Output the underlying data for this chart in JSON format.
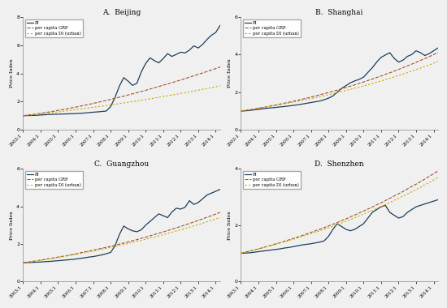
{
  "titles": [
    "A.  Beijing",
    "B.  Shanghai",
    "C.  Guangzhou",
    "D.  Shenzhen"
  ],
  "ylabel": "Price Index",
  "x_ticks": [
    "2003:1",
    "2004:1",
    "2005:1",
    "2006:1",
    "2007:1",
    "2008:1",
    "2009:1",
    "2010:1",
    "2011:1",
    "2012:1",
    "2013:1",
    "2014:1"
  ],
  "legend_labels": [
    "PI",
    "per capita GRP",
    "per capita DI (urban)"
  ],
  "pi_color": "#1c3f5e",
  "grp_color": "#a0522d",
  "di_color": "#c8a800",
  "fig_facecolor": "#f0f0f0",
  "ax_facecolor": "#f0f0f0",
  "n_points": 46,
  "pi_beijing": [
    1.0,
    1.01,
    1.02,
    1.03,
    1.05,
    1.07,
    1.09,
    1.1,
    1.11,
    1.12,
    1.13,
    1.14,
    1.15,
    1.17,
    1.19,
    1.22,
    1.25,
    1.27,
    1.3,
    1.33,
    1.65,
    2.3,
    3.1,
    3.7,
    3.45,
    3.15,
    3.3,
    4.1,
    4.7,
    5.1,
    4.9,
    4.75,
    5.05,
    5.4,
    5.2,
    5.35,
    5.5,
    5.45,
    5.65,
    5.95,
    5.8,
    6.05,
    6.4,
    6.7,
    6.9,
    7.4
  ],
  "grp_beijing": [
    1.0,
    1.04,
    1.08,
    1.12,
    1.17,
    1.22,
    1.27,
    1.32,
    1.38,
    1.43,
    1.49,
    1.55,
    1.61,
    1.67,
    1.74,
    1.8,
    1.87,
    1.94,
    2.01,
    2.08,
    2.16,
    2.24,
    2.31,
    2.39,
    2.47,
    2.55,
    2.63,
    2.72,
    2.8,
    2.89,
    2.98,
    3.07,
    3.16,
    3.25,
    3.34,
    3.44,
    3.53,
    3.63,
    3.73,
    3.83,
    3.93,
    4.03,
    4.13,
    4.24,
    4.34,
    4.45
  ],
  "di_beijing": [
    1.0,
    1.03,
    1.06,
    1.09,
    1.13,
    1.16,
    1.2,
    1.24,
    1.27,
    1.31,
    1.35,
    1.39,
    1.43,
    1.47,
    1.51,
    1.55,
    1.59,
    1.64,
    1.68,
    1.72,
    1.77,
    1.81,
    1.86,
    1.91,
    1.95,
    2.0,
    2.05,
    2.1,
    2.15,
    2.2,
    2.25,
    2.31,
    2.36,
    2.41,
    2.47,
    2.52,
    2.58,
    2.63,
    2.69,
    2.75,
    2.81,
    2.87,
    2.93,
    2.99,
    3.05,
    3.12
  ],
  "pi_shanghai": [
    1.0,
    1.01,
    1.03,
    1.06,
    1.09,
    1.12,
    1.15,
    1.17,
    1.19,
    1.22,
    1.24,
    1.27,
    1.3,
    1.33,
    1.37,
    1.41,
    1.45,
    1.49,
    1.53,
    1.6,
    1.68,
    1.8,
    2.0,
    2.2,
    2.35,
    2.5,
    2.6,
    2.68,
    2.8,
    3.05,
    3.3,
    3.6,
    3.85,
    3.98,
    4.1,
    3.8,
    3.6,
    3.7,
    3.9,
    4.0,
    4.2,
    4.1,
    3.95,
    4.05,
    4.2,
    4.35
  ],
  "grp_shanghai": [
    1.0,
    1.03,
    1.07,
    1.11,
    1.15,
    1.19,
    1.23,
    1.28,
    1.32,
    1.37,
    1.42,
    1.47,
    1.52,
    1.57,
    1.63,
    1.68,
    1.74,
    1.8,
    1.86,
    1.92,
    1.98,
    2.05,
    2.11,
    2.18,
    2.25,
    2.32,
    2.39,
    2.47,
    2.54,
    2.62,
    2.7,
    2.78,
    2.86,
    2.95,
    3.03,
    3.12,
    3.21,
    3.3,
    3.4,
    3.49,
    3.59,
    3.69,
    3.79,
    3.89,
    4.0,
    4.1
  ],
  "di_shanghai": [
    1.0,
    1.04,
    1.07,
    1.11,
    1.14,
    1.18,
    1.22,
    1.26,
    1.3,
    1.34,
    1.38,
    1.43,
    1.47,
    1.52,
    1.56,
    1.61,
    1.66,
    1.71,
    1.76,
    1.81,
    1.86,
    1.92,
    1.97,
    2.03,
    2.09,
    2.15,
    2.21,
    2.27,
    2.33,
    2.4,
    2.46,
    2.53,
    2.6,
    2.67,
    2.74,
    2.81,
    2.89,
    2.96,
    3.04,
    3.12,
    3.2,
    3.28,
    3.37,
    3.45,
    3.54,
    3.63
  ],
  "pi_guangzhou": [
    1.0,
    1.01,
    1.02,
    1.03,
    1.04,
    1.06,
    1.07,
    1.09,
    1.11,
    1.13,
    1.15,
    1.17,
    1.2,
    1.23,
    1.26,
    1.3,
    1.33,
    1.37,
    1.42,
    1.48,
    1.55,
    1.9,
    2.5,
    2.95,
    2.8,
    2.7,
    2.65,
    2.75,
    3.0,
    3.2,
    3.4,
    3.6,
    3.5,
    3.4,
    3.7,
    3.9,
    3.85,
    3.95,
    4.3,
    4.1,
    4.2,
    4.4,
    4.6,
    4.7,
    4.8,
    4.9
  ],
  "grp_guangzhou": [
    1.0,
    1.03,
    1.07,
    1.1,
    1.14,
    1.18,
    1.22,
    1.26,
    1.3,
    1.34,
    1.38,
    1.43,
    1.47,
    1.52,
    1.57,
    1.62,
    1.67,
    1.72,
    1.77,
    1.82,
    1.88,
    1.93,
    1.99,
    2.05,
    2.11,
    2.17,
    2.23,
    2.3,
    2.36,
    2.43,
    2.5,
    2.57,
    2.64,
    2.71,
    2.78,
    2.86,
    2.93,
    3.01,
    3.09,
    3.17,
    3.25,
    3.33,
    3.42,
    3.5,
    3.59,
    3.68
  ],
  "di_guangzhou": [
    1.0,
    1.03,
    1.06,
    1.1,
    1.13,
    1.17,
    1.2,
    1.24,
    1.28,
    1.32,
    1.36,
    1.4,
    1.44,
    1.49,
    1.53,
    1.58,
    1.62,
    1.67,
    1.72,
    1.77,
    1.82,
    1.87,
    1.92,
    1.97,
    2.03,
    2.08,
    2.14,
    2.19,
    2.25,
    2.31,
    2.37,
    2.43,
    2.49,
    2.56,
    2.62,
    2.69,
    2.75,
    2.82,
    2.89,
    2.96,
    3.03,
    3.1,
    3.18,
    3.25,
    3.33,
    3.41
  ],
  "pi_shenzhen": [
    1.0,
    1.01,
    1.02,
    1.04,
    1.06,
    1.08,
    1.1,
    1.12,
    1.14,
    1.16,
    1.19,
    1.21,
    1.24,
    1.27,
    1.3,
    1.32,
    1.34,
    1.37,
    1.4,
    1.44,
    1.6,
    1.85,
    2.05,
    1.95,
    1.85,
    1.8,
    1.85,
    1.95,
    2.05,
    2.25,
    2.45,
    2.55,
    2.65,
    2.7,
    2.45,
    2.35,
    2.25,
    2.3,
    2.45,
    2.55,
    2.65,
    2.7,
    2.75,
    2.8,
    2.85,
    2.9
  ],
  "grp_shenzhen": [
    1.0,
    1.04,
    1.08,
    1.12,
    1.16,
    1.2,
    1.25,
    1.29,
    1.34,
    1.38,
    1.43,
    1.48,
    1.53,
    1.58,
    1.63,
    1.69,
    1.74,
    1.8,
    1.85,
    1.91,
    1.97,
    2.03,
    2.09,
    2.16,
    2.22,
    2.29,
    2.36,
    2.43,
    2.5,
    2.57,
    2.64,
    2.72,
    2.79,
    2.87,
    2.95,
    3.03,
    3.11,
    3.19,
    3.28,
    3.37,
    3.45,
    3.54,
    3.63,
    3.73,
    3.82,
    3.92
  ],
  "di_shenzhen": [
    1.0,
    1.04,
    1.08,
    1.12,
    1.16,
    1.2,
    1.24,
    1.28,
    1.33,
    1.37,
    1.41,
    1.46,
    1.5,
    1.55,
    1.6,
    1.65,
    1.7,
    1.75,
    1.8,
    1.85,
    1.91,
    1.96,
    2.02,
    2.08,
    2.14,
    2.2,
    2.26,
    2.33,
    2.39,
    2.46,
    2.52,
    2.59,
    2.66,
    2.73,
    2.8,
    2.88,
    2.95,
    3.03,
    3.1,
    3.18,
    3.26,
    3.34,
    3.43,
    3.51,
    3.6,
    3.69
  ],
  "ylim_beijing": [
    0,
    8
  ],
  "ylim_shanghai": [
    0,
    6
  ],
  "ylim_guangzhou": [
    0,
    6
  ],
  "ylim_shenzhen": [
    0,
    4
  ],
  "yticks_beijing": [
    0,
    2,
    4,
    6,
    8
  ],
  "yticks_shanghai": [
    0,
    2,
    4,
    6
  ],
  "yticks_guangzhou": [
    0,
    2,
    4,
    6
  ],
  "yticks_shenzhen": [
    0,
    2,
    4
  ]
}
